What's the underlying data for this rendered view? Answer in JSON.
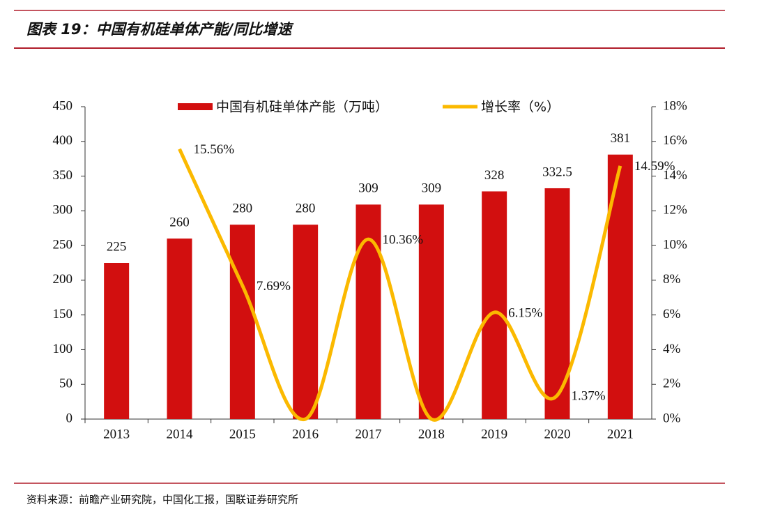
{
  "chart_data": {
    "type": "bar_line",
    "title": "图表 19：中国有机硅单体产能/同比增速",
    "source": "资料来源：前瞻产业研究院，中国化工报，国联证券研究所",
    "categories": [
      "2013",
      "2014",
      "2015",
      "2016",
      "2017",
      "2018",
      "2019",
      "2020",
      "2021"
    ],
    "series": [
      {
        "name": "中国有机硅单体产能（万吨）",
        "type": "bar",
        "color": "#d20f0f",
        "values": [
          225,
          260,
          280,
          280,
          309,
          309,
          328,
          332.5,
          381
        ]
      },
      {
        "name": "增长率（%）",
        "type": "line",
        "color": "#fbb900",
        "axis": "y2",
        "smooth": true,
        "values": [
          null,
          15.56,
          7.69,
          0,
          10.36,
          0,
          6.15,
          1.37,
          14.59
        ],
        "value_labels": [
          null,
          "15.56%",
          "7.69%",
          null,
          "10.36%",
          null,
          "6.15%",
          "1.37%",
          "14.59%"
        ]
      }
    ],
    "ylim": [
      0,
      450
    ],
    "yticks": [
      0,
      50,
      100,
      150,
      200,
      250,
      300,
      350,
      400,
      450
    ],
    "y2lim": [
      0,
      18
    ],
    "y2ticks": [
      {
        "value": 0,
        "label": "0%"
      },
      {
        "value": 2,
        "label": "2%"
      },
      {
        "value": 4,
        "label": "4%"
      },
      {
        "value": 6,
        "label": "6%"
      },
      {
        "value": 8,
        "label": "8%"
      },
      {
        "value": 10,
        "label": "10%"
      },
      {
        "value": 12,
        "label": "12%"
      },
      {
        "value": 14,
        "label": "14%"
      },
      {
        "value": 16,
        "label": "16%"
      },
      {
        "value": 18,
        "label": "18%"
      }
    ],
    "legend": "top"
  }
}
